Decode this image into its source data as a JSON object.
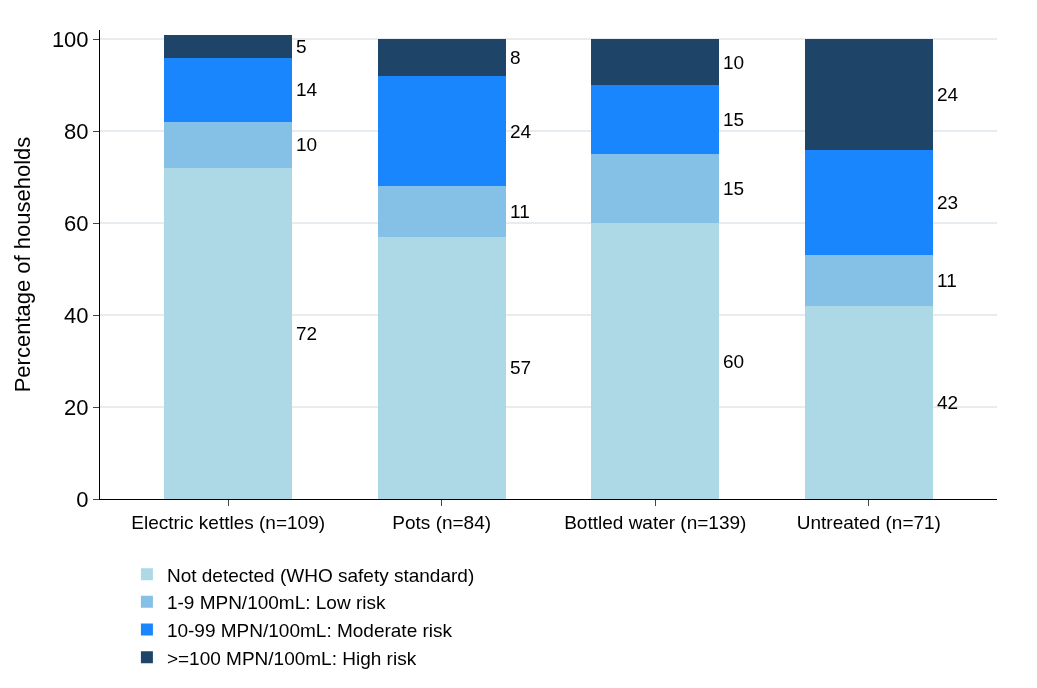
{
  "chart_data": {
    "type": "bar",
    "stacked": true,
    "ylabel": "Percentage of households",
    "categories": [
      "Electric kettles (n=109)",
      "Pots (n=84)",
      "Bottled water (n=139)",
      "Untreated (n=71)"
    ],
    "series": [
      {
        "name": "Not detected (WHO safety standard)",
        "color": "#add8e6",
        "values": [
          72,
          57,
          60,
          42
        ]
      },
      {
        "name": "1-9 MPN/100mL: Low risk",
        "color": "#85c0e6",
        "values": [
          10,
          11,
          15,
          11
        ]
      },
      {
        "name": "10-99 MPN/100mL: Moderate risk",
        "color": "#1a86fe",
        "values": [
          14,
          24,
          15,
          23
        ]
      },
      {
        "name": ">=100 MPN/100mL: High risk",
        "color": "#1e4568",
        "values": [
          5,
          8,
          10,
          24
        ]
      }
    ],
    "ylim": [
      0,
      102
    ],
    "yticks": [
      0,
      20,
      40,
      60,
      80,
      100
    ],
    "grid": "y",
    "legend": "bottom",
    "data_labels": true
  }
}
